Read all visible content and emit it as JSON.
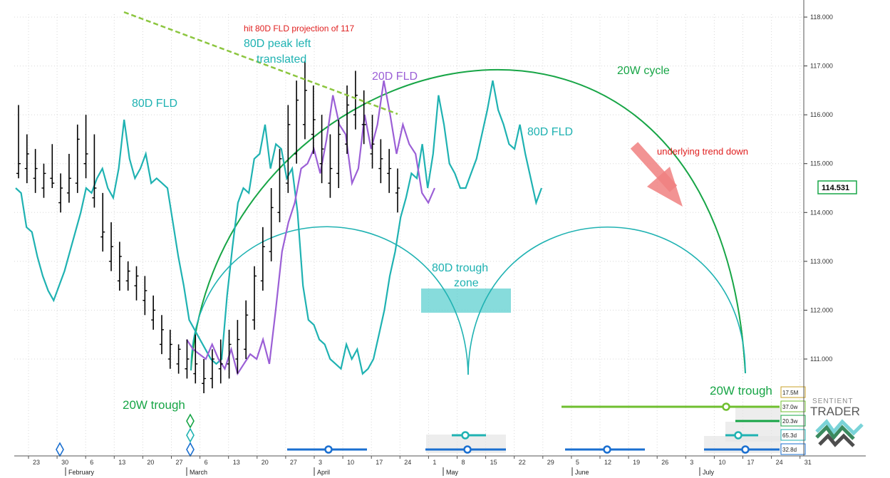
{
  "brand": {
    "line1": "SENTIENT",
    "line2": "TRADER",
    "logo_colors": [
      "#7ad3d8",
      "#3b8a5f",
      "#4e4e4e"
    ]
  },
  "colors": {
    "price": "#000000",
    "fld80": "#1fb2b2",
    "fld20": "#9b5fd6",
    "cycle": "#17a546",
    "trendline": "#8cc63f",
    "red_text": "#e02020",
    "arrow": "#f08080",
    "zone": "#5fd0d0",
    "lane_blue": "#1a6fd0",
    "lane_green": "#6fbf2f"
  },
  "chart_data": {
    "type": "ohlc",
    "y_range": [
      110.25,
      118.2
    ],
    "y_ticks": [
      "118.000",
      "117.000",
      "116.000",
      "115.000",
      "114.000",
      "113.000",
      "112.000",
      "111.000"
    ],
    "last_price": "114.531",
    "x_ticks": [
      "23",
      "30",
      "6",
      "13",
      "20",
      "27",
      "6",
      "13",
      "20",
      "27",
      "3",
      "10",
      "17",
      "24",
      "1",
      "8",
      "15",
      "22",
      "29",
      "5",
      "12",
      "19",
      "26",
      "3",
      "10",
      "17",
      "24",
      "31"
    ],
    "months": [
      "February",
      "March",
      "April",
      "May",
      "June",
      "July"
    ],
    "fld80": [
      114.5,
      114.4,
      113.7,
      113.6,
      113.1,
      112.7,
      112.4,
      112.2,
      112.5,
      112.8,
      113.2,
      113.6,
      114.0,
      114.5,
      114.4,
      114.7,
      114.9,
      114.5,
      114.3,
      114.9,
      115.9,
      115.1,
      114.7,
      114.9,
      115.2,
      114.6,
      114.7,
      114.6,
      114.5,
      113.8,
      113.1,
      112.5,
      111.8,
      111.6,
      111.4,
      111.2,
      111.0,
      110.9,
      111.0,
      112.3,
      113.3,
      114.2,
      114.5,
      114.4,
      115.1,
      115.2,
      115.8,
      114.9,
      115.4,
      115.3,
      114.7,
      114.9,
      114.0,
      112.5,
      111.8,
      111.7,
      111.4,
      111.3,
      111.0,
      110.9,
      110.8,
      111.3,
      111.0,
      111.2,
      110.7,
      110.8,
      111.0,
      111.5,
      112.0,
      112.7,
      113.2,
      113.9,
      114.3,
      114.8,
      114.7,
      115.4,
      114.5,
      115.2,
      116.4,
      115.8,
      115.0,
      114.8,
      114.5,
      114.5,
      114.8,
      115.1,
      115.6,
      116.1,
      116.7,
      116.1,
      115.8,
      115.4,
      115.3,
      115.8,
      115.2,
      114.7,
      114.2,
      114.5
    ],
    "fld20": [
      111.4,
      111.2,
      111.1,
      111.0,
      111.3,
      111.0,
      110.8,
      111.2,
      110.7,
      110.9,
      111.1,
      111.0,
      111.4,
      110.9,
      112.0,
      113.2,
      113.8,
      114.2,
      114.9,
      115.0,
      115.3,
      114.8,
      115.5,
      116.4,
      115.8,
      115.6,
      114.6,
      114.9,
      116.0,
      115.3,
      115.8,
      116.7,
      116.0,
      115.2,
      115.8,
      115.4,
      115.2,
      114.4,
      114.2,
      114.5
    ],
    "price_start_week": 0,
    "bars": [
      [
        114.8,
        116.2,
        114.7,
        115.0
      ],
      [
        114.9,
        115.6,
        114.6,
        115.2
      ],
      [
        114.7,
        115.3,
        114.4,
        114.9
      ],
      [
        114.5,
        115.0,
        114.3,
        114.8
      ],
      [
        114.7,
        115.4,
        114.5,
        114.6
      ],
      [
        114.2,
        114.8,
        114.0,
        114.5
      ],
      [
        114.4,
        115.2,
        114.2,
        114.7
      ],
      [
        114.6,
        115.8,
        114.4,
        115.5
      ],
      [
        115.0,
        116.0,
        114.7,
        115.2
      ],
      [
        114.3,
        115.6,
        114.1,
        114.5
      ],
      [
        113.5,
        114.4,
        113.2,
        113.6
      ],
      [
        113.0,
        113.8,
        112.8,
        113.3
      ],
      [
        112.6,
        113.4,
        112.4,
        113.1
      ],
      [
        112.6,
        113.0,
        112.4,
        112.8
      ],
      [
        112.5,
        112.9,
        112.2,
        112.7
      ],
      [
        112.2,
        112.7,
        111.9,
        112.4
      ],
      [
        111.8,
        112.3,
        111.6,
        112.0
      ],
      [
        111.3,
        111.9,
        111.1,
        111.6
      ],
      [
        111.0,
        111.6,
        110.8,
        111.3
      ],
      [
        110.9,
        111.3,
        110.7,
        111.2
      ],
      [
        110.8,
        111.4,
        110.6,
        111.0
      ],
      [
        110.7,
        111.5,
        110.5,
        110.9
      ],
      [
        110.5,
        111.0,
        110.3,
        110.6
      ],
      [
        110.6,
        111.2,
        110.4,
        111.0
      ],
      [
        110.8,
        111.4,
        110.5,
        110.9
      ],
      [
        110.9,
        111.6,
        110.6,
        111.3
      ],
      [
        111.0,
        111.8,
        110.7,
        111.4
      ],
      [
        111.2,
        112.2,
        111.0,
        111.9
      ],
      [
        111.8,
        112.9,
        111.6,
        112.7
      ],
      [
        112.6,
        113.7,
        112.4,
        113.3
      ],
      [
        113.2,
        114.5,
        113.0,
        114.1
      ],
      [
        114.0,
        115.3,
        113.8,
        115.1
      ],
      [
        114.6,
        116.2,
        114.4,
        115.8
      ],
      [
        115.2,
        116.7,
        115.0,
        116.3
      ],
      [
        115.8,
        117.1,
        115.5,
        116.5
      ],
      [
        115.6,
        116.6,
        115.2,
        115.9
      ],
      [
        115.0,
        116.0,
        114.6,
        115.3
      ],
      [
        114.6,
        115.6,
        114.3,
        114.9
      ],
      [
        114.8,
        115.9,
        114.5,
        115.6
      ],
      [
        115.4,
        116.6,
        115.2,
        116.2
      ],
      [
        116.0,
        116.9,
        115.7,
        116.4
      ],
      [
        115.8,
        116.5,
        115.4,
        115.8
      ],
      [
        115.2,
        116.0,
        114.9,
        115.4
      ],
      [
        114.9,
        115.5,
        114.6,
        115.1
      ],
      [
        114.8,
        115.3,
        114.4,
        114.9
      ],
      [
        114.4,
        114.9,
        114.0,
        114.5
      ]
    ],
    "trendline": {
      "from": [
        "13 Feb",
        117.8
      ],
      "to": [
        "17 Apr",
        116.0
      ]
    }
  },
  "annotations": {
    "hit_fld": "hit 80D FLD projection of 117",
    "peak_left_1": "80D peak left",
    "peak_left_2": "translated",
    "fld20_label": "20D FLD",
    "fld80_label_left": "80D FLD",
    "fld80_label_right": "80D FLD",
    "cycle20w": "20W cycle",
    "trend_down": "underlying trend down",
    "trough_zone_1": "80D trough",
    "trough_zone_2": "zone",
    "trough20w_left": "20W trough",
    "trough20w_right": "20W trough"
  },
  "cycle_labels": [
    {
      "text": "17.5M",
      "color": "#c9a227"
    },
    {
      "text": "37.0w",
      "color": "#6fbf2f"
    },
    {
      "text": "20.3w",
      "color": "#17a546"
    },
    {
      "text": "65.3d",
      "color": "#1fb2b2"
    },
    {
      "text": "32.8d",
      "color": "#1a6fd0"
    }
  ]
}
